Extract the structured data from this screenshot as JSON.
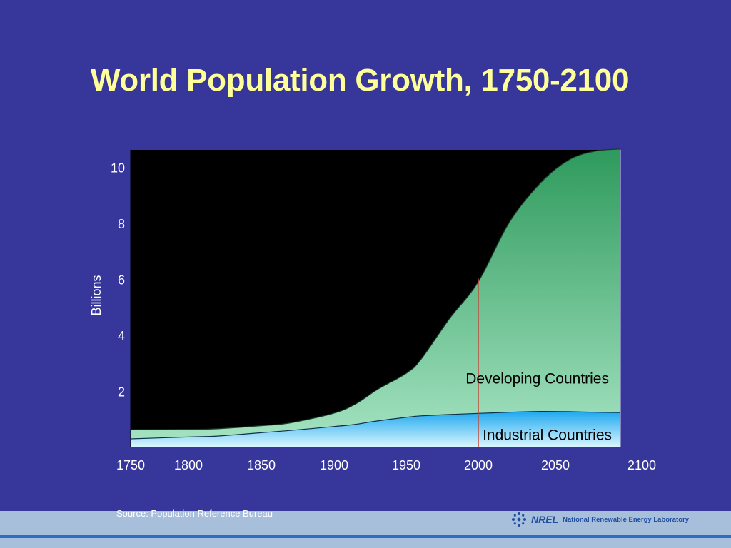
{
  "slide": {
    "title": "World Population Growth, 1750-2100",
    "source": "Source: Population Reference Bureau"
  },
  "footer": {
    "logo_mark": "NREL",
    "logo_text": "National Renewable Energy Laboratory",
    "logo_icon": "nrel-snowflake-icon"
  },
  "colors": {
    "background": "#36369b",
    "title": "#ffff99",
    "plot_background": "#000000",
    "developing_top": "#2e9a5c",
    "developing_bottom": "#a3e2c0",
    "industrial_top": "#1ea8ef",
    "industrial_bottom": "#d8f5ff",
    "marker_line": "#c04a3a"
  },
  "chart_data": {
    "type": "area",
    "title": "World Population Growth, 1750-2100",
    "ylabel": "Billions",
    "xlabel": "",
    "xlim": [
      1750,
      2100
    ],
    "ylim": [
      0,
      10.6
    ],
    "yticks": [
      2,
      4,
      6,
      8,
      10
    ],
    "xticks": [
      1750,
      1800,
      1850,
      1900,
      1950,
      2000,
      2050,
      2100
    ],
    "stacked": true,
    "series": [
      {
        "name": "Industrial Countries",
        "x": [
          1750,
          1800,
          1820,
          1850,
          1870,
          1900,
          1915,
          1930,
          1950,
          1960,
          1980,
          2000,
          2020,
          2040,
          2060,
          2080,
          2100
        ],
        "values": [
          0.28,
          0.35,
          0.38,
          0.5,
          0.58,
          0.72,
          0.8,
          0.92,
          1.05,
          1.1,
          1.15,
          1.19,
          1.23,
          1.26,
          1.25,
          1.23,
          1.22
        ]
      },
      {
        "name": "Developing Countries",
        "x": [
          1750,
          1800,
          1820,
          1850,
          1870,
          1900,
          1915,
          1930,
          1950,
          1960,
          1980,
          2000,
          2020,
          2040,
          2060,
          2080,
          2100
        ],
        "values": [
          0.33,
          0.27,
          0.26,
          0.25,
          0.27,
          0.48,
          0.73,
          1.12,
          1.57,
          2.0,
          3.42,
          4.7,
          6.77,
          8.14,
          8.98,
          9.32,
          9.41
        ]
      }
    ],
    "annotations": [
      {
        "text": "Developing Countries",
        "x": 2085,
        "y": 2.3
      },
      {
        "text": "Industrial Countries",
        "x": 2085,
        "y": 0.35
      },
      {
        "type": "vertical-line",
        "x": 2000,
        "y_to": 6.0
      }
    ]
  }
}
